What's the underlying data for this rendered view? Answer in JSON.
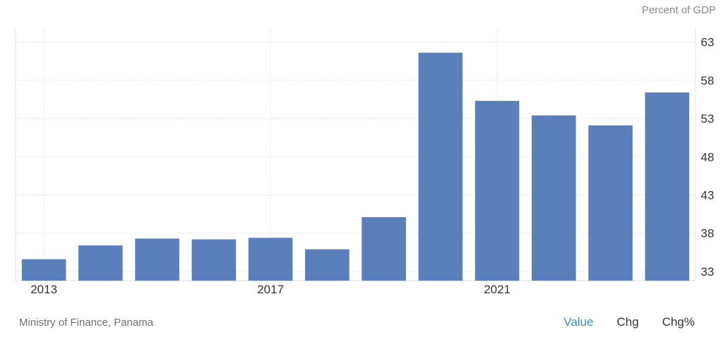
{
  "unit_label": "Percent of GDP",
  "source": "Ministry of Finance, Panama",
  "tabs": [
    {
      "label": "Value",
      "active": true
    },
    {
      "label": "Chg",
      "active": false
    },
    {
      "label": "Chg%",
      "active": false
    }
  ],
  "colors": {
    "bar": "#5b7fbb",
    "grid": "#e3e3e3",
    "active_tab": "#3a8fd6"
  },
  "chart_data": {
    "type": "bar",
    "categories": [
      "2013",
      "2014",
      "2015",
      "2016",
      "2017",
      "2018",
      "2019",
      "2020",
      "2021",
      "2022",
      "2023",
      "2024"
    ],
    "values": [
      34.6,
      36.4,
      37.3,
      37.2,
      37.4,
      35.9,
      40.1,
      61.6,
      55.3,
      53.4,
      52.1,
      56.4
    ],
    "x_tick_labels": [
      "2013",
      "2017",
      "2021"
    ],
    "y_ticks": [
      33,
      38,
      43,
      48,
      53,
      58,
      63
    ],
    "ylim": [
      31.8,
      64.8
    ],
    "ylabel": "Percent of GDP",
    "grid": true
  }
}
